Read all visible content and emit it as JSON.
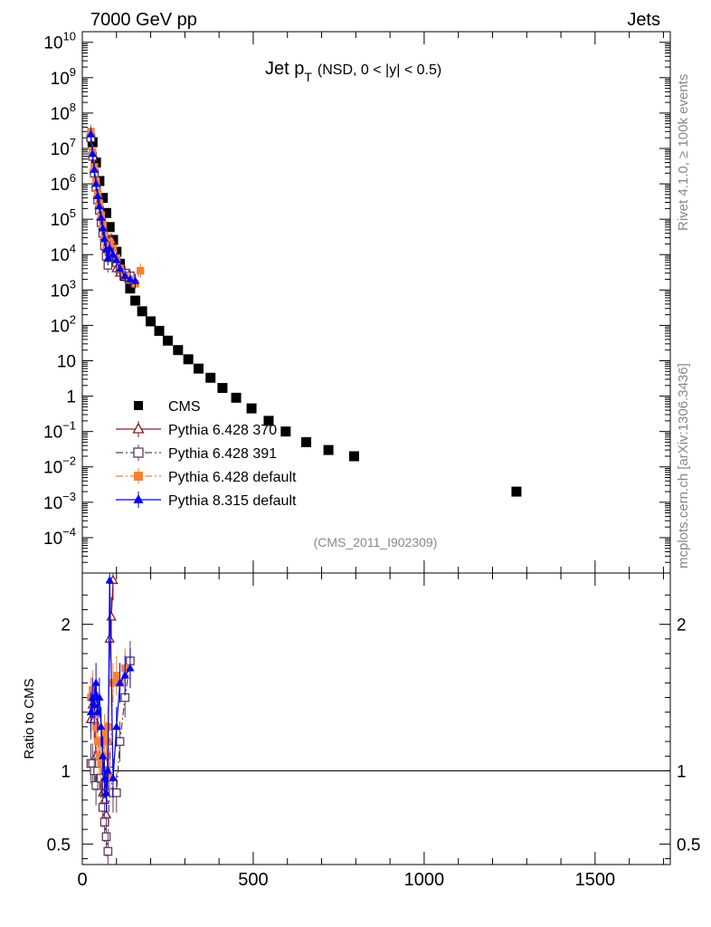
{
  "header": {
    "left": "7000 GeV pp",
    "right": "Jets"
  },
  "side_labels": {
    "rivet": "Rivet 4.1.0, ≥ 100k events",
    "mcplots": "mcplots.cern.ch [arXiv:1306.3436]"
  },
  "chart_data": {
    "type": "scatter",
    "title_main": "Jet p",
    "title_sub": "T",
    "title_extra": "(NSD,   0 < |y| < 0.5)",
    "analysis_tag": "(CMS_2011_I902309)",
    "xlim": [
      0,
      1720
    ],
    "x_ticks": [
      0,
      500,
      1000,
      1500
    ],
    "x_tick_labels": [
      "0",
      "500",
      "1000",
      "1500"
    ],
    "top": {
      "yscale": "log",
      "ylim_exp": [
        -5,
        10.3
      ],
      "y_tick_labels": [
        {
          "exp": 10,
          "base": "10",
          "sup": "10"
        },
        {
          "exp": 9,
          "base": "10",
          "sup": "9"
        },
        {
          "exp": 8,
          "base": "10",
          "sup": "8"
        },
        {
          "exp": 7,
          "base": "10",
          "sup": "7"
        },
        {
          "exp": 6,
          "base": "10",
          "sup": "6"
        },
        {
          "exp": 5,
          "base": "10",
          "sup": "5"
        },
        {
          "exp": 4,
          "base": "10",
          "sup": "4"
        },
        {
          "exp": 3,
          "base": "10",
          "sup": "3"
        },
        {
          "exp": 2,
          "base": "10",
          "sup": "2"
        },
        {
          "exp": 1,
          "base": "10",
          "sup": ""
        },
        {
          "exp": 0,
          "base": "1",
          "sup": ""
        },
        {
          "exp": -1,
          "base": "10",
          "sup": "−1"
        },
        {
          "exp": -2,
          "base": "10",
          "sup": "−2"
        },
        {
          "exp": -3,
          "base": "10",
          "sup": "−3"
        },
        {
          "exp": -4,
          "base": "10",
          "sup": "−4"
        }
      ]
    },
    "bottom": {
      "ylabel": "Ratio to CMS",
      "ylim": [
        0.36,
        2.35
      ],
      "y_ticks": [
        0.5,
        1,
        2
      ],
      "y_tick_labels": [
        "0.5",
        "1",
        "2"
      ]
    },
    "series": [
      {
        "name": "CMS",
        "color": "#000000",
        "marker": "square",
        "line": "none",
        "x": [
          30,
          40,
          50,
          60,
          70,
          80,
          90,
          100,
          110,
          125,
          140,
          155,
          175,
          200,
          225,
          250,
          280,
          310,
          340,
          375,
          410,
          450,
          495,
          545,
          595,
          655,
          720,
          795,
          1270
        ],
        "y": [
          15000000.0,
          4000000.0,
          1200000.0,
          400000.0,
          150000.0,
          60000.0,
          26000.0,
          12000.0,
          5500.0,
          2500.0,
          1100.0,
          500.0,
          250.0,
          130.0,
          70,
          37,
          20,
          11,
          6,
          3.3,
          1.7,
          0.9,
          0.45,
          0.2,
          0.1,
          0.05,
          0.03,
          0.02,
          0.002
        ]
      },
      {
        "name": "Pythia 6.428 370",
        "color": "#8b1a2b",
        "marker": "triangle-open",
        "line": "solid",
        "x": [
          25,
          30,
          35,
          40,
          45,
          50,
          55,
          60,
          65,
          70,
          75,
          80,
          85,
          90,
          95,
          100,
          110,
          125,
          140
        ],
        "y": [
          22000000.0,
          7000000.0,
          2500000.0,
          1000000.0,
          480000.0,
          250000.0,
          120000.0,
          65000.0,
          32000.0,
          16000.0,
          10000.0,
          20000.0,
          25000.0,
          12000.0,
          8000.0,
          4000.0,
          3000.0,
          2500.0,
          2000.0
        ],
        "ratio_x": [
          25,
          30,
          35,
          40,
          45,
          50,
          55,
          60,
          65,
          70,
          75,
          80,
          85,
          90
        ],
        "ratio_y": [
          1.35,
          1.45,
          1.35,
          1.1,
          1.0,
          1.1,
          0.95,
          0.85,
          0.8,
          0.7,
          1.2,
          1.9,
          2.05,
          2.3
        ]
      },
      {
        "name": "Pythia 6.428 391",
        "color": "#5c3a5a",
        "marker": "square-open",
        "line": "dash-dot",
        "x": [
          25,
          30,
          35,
          40,
          45,
          50,
          55,
          60,
          65,
          70,
          75,
          80,
          90,
          100,
          110,
          125,
          140
        ],
        "y": [
          20000000.0,
          6000000.0,
          2000000.0,
          800000.0,
          350000.0,
          180000.0,
          80000.0,
          40000.0,
          18000.0,
          9000.0,
          5000.0,
          12000.0,
          10000.0,
          6000.0,
          4000.0,
          3000.0,
          2500.0
        ],
        "ratio_x": [
          25,
          30,
          35,
          40,
          45,
          50,
          55,
          60,
          65,
          70,
          75,
          80,
          90,
          100,
          110,
          125,
          140
        ],
        "ratio_y": [
          1.05,
          1.05,
          1.0,
          0.9,
          1.0,
          1.05,
          0.95,
          0.75,
          0.65,
          0.55,
          0.45,
          1.0,
          0.85,
          0.85,
          1.2,
          1.5,
          1.75
        ]
      },
      {
        "name": "Pythia 6.428 default",
        "color": "#f58233",
        "marker": "square",
        "line": "dash-dot",
        "x": [
          25,
          30,
          35,
          40,
          45,
          50,
          55,
          60,
          65,
          70,
          75,
          80,
          90,
          100,
          110,
          125,
          140,
          155,
          170
        ],
        "y": [
          30000000.0,
          8000000.0,
          3000000.0,
          1200000.0,
          550000.0,
          280000.0,
          130000.0,
          70000.0,
          35000.0,
          18000.0,
          12000.0,
          22000.0,
          15000.0,
          8000.0,
          4000.0,
          2500.0,
          2000.0,
          1500.0,
          3500.0
        ],
        "ratio_x": [
          25,
          30,
          35,
          40,
          45,
          50,
          55,
          60,
          65,
          70,
          75,
          80,
          90,
          100,
          110,
          125
        ],
        "ratio_y": [
          1.5,
          1.55,
          1.4,
          1.3,
          1.2,
          1.1,
          1.05,
          1.1,
          1.25,
          1.2,
          1.3,
          0.95,
          1.6,
          1.65,
          1.6,
          1.7
        ]
      },
      {
        "name": "Pythia 8.315 default",
        "color": "#0000ee",
        "marker": "triangle",
        "line": "solid",
        "x": [
          25,
          30,
          35,
          40,
          45,
          50,
          55,
          60,
          65,
          70,
          75,
          80,
          90,
          100,
          110,
          125,
          140,
          155
        ],
        "y": [
          25000000.0,
          7000000.0,
          2500000.0,
          1000000.0,
          450000.0,
          230000.0,
          110000.0,
          55000.0,
          28000.0,
          14000.0,
          8000.0,
          15000.0,
          10000.0,
          7000.0,
          4000.0,
          2500.0,
          2000.0,
          1800.0
        ],
        "ratio_x": [
          25,
          30,
          35,
          40,
          45,
          50,
          55,
          60,
          65,
          70,
          75,
          80,
          90,
          100,
          110,
          125,
          140
        ],
        "ratio_y": [
          1.4,
          1.5,
          1.45,
          1.6,
          1.4,
          1.5,
          1.3,
          1.1,
          0.95,
          0.85,
          1.0,
          2.3,
          0.95,
          1.3,
          1.6,
          1.65,
          1.7
        ]
      }
    ],
    "legend": {
      "placement": "bottom-left",
      "entries": [
        "CMS",
        "Pythia 6.428 370",
        "Pythia 6.428 391",
        "Pythia 6.428 default",
        "Pythia 8.315 default"
      ]
    }
  }
}
